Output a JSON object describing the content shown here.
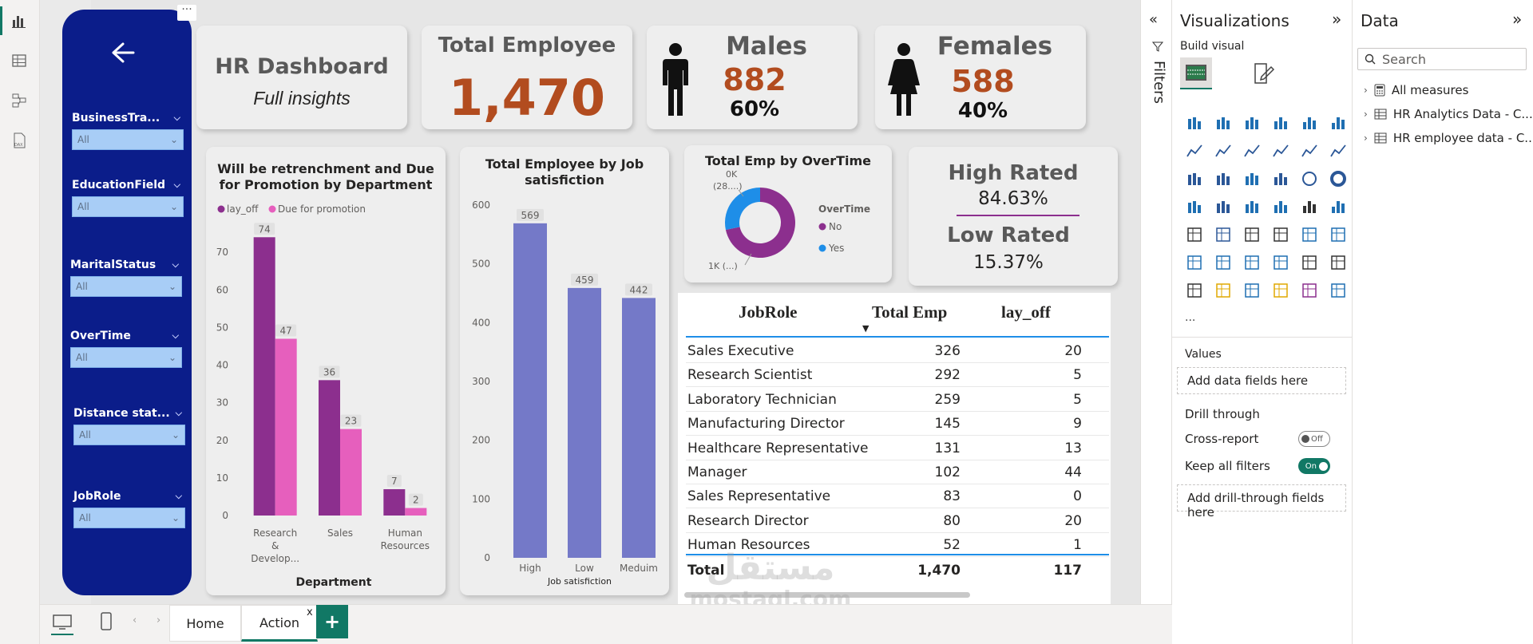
{
  "left_rail": {
    "icons": [
      "report-view-icon",
      "table-view-icon",
      "model-view-icon",
      "dax-query-icon"
    ]
  },
  "slicers": [
    {
      "label": "BusinessTra...",
      "value": "All"
    },
    {
      "label": "EducationField",
      "value": "All"
    },
    {
      "label": "MaritalStatus",
      "value": "All"
    },
    {
      "label": "OverTime",
      "value": "All"
    },
    {
      "label": "Distance stat...",
      "value": "All"
    },
    {
      "label": "JobRole",
      "value": "All"
    }
  ],
  "title_card": {
    "title": "HR Dashboard",
    "subtitle": "Full insights"
  },
  "total_card": {
    "title": "Total Employee",
    "value": "1,470"
  },
  "males_card": {
    "title": "Males",
    "value": "882",
    "pct": "60%"
  },
  "females_card": {
    "title": "Females",
    "value": "588",
    "pct": "40%"
  },
  "rating_card": {
    "high_label": "High Rated",
    "high_value": "84.63%",
    "low_label": "Low Rated",
    "low_value": "15.37%"
  },
  "chart_data": [
    {
      "type": "bar",
      "title": "Will be retrenchment and Due for Promotion by Department",
      "xlabel": "Department",
      "ylabel": "",
      "categories": [
        "Research & Develop...",
        "Sales",
        "Human Resources"
      ],
      "series": [
        {
          "name": "lay_off",
          "values": [
            74,
            36,
            7
          ],
          "color": "#8c2f8e"
        },
        {
          "name": "Due for promotion",
          "values": [
            47,
            23,
            2
          ],
          "color": "#e65fbd"
        }
      ],
      "ylim": [
        0,
        80
      ],
      "yticks": [
        0,
        10,
        20,
        30,
        40,
        50,
        60,
        70
      ],
      "legend": "top-left",
      "grid": false
    },
    {
      "type": "bar",
      "title": "Total Employee by Job satisfiction",
      "xlabel": "Job satisfiction",
      "ylabel": "",
      "categories": [
        "High",
        "Low",
        "Meduim"
      ],
      "values": [
        569,
        459,
        442
      ],
      "color": "#7479c8",
      "ylim": [
        0,
        600
      ],
      "yticks": [
        0,
        100,
        200,
        300,
        400,
        500,
        600
      ],
      "grid": false
    },
    {
      "type": "pie",
      "title": "Total Emp by OverTime",
      "legend_title": "OverTime",
      "categories": [
        "No",
        "Yes"
      ],
      "values": [
        1054,
        416
      ],
      "colors": [
        "#8c2f8e",
        "#1e8ee8"
      ],
      "slice_labels": [
        "1K (...)",
        "0K (28....)"
      ],
      "legend": "right"
    },
    {
      "type": "table",
      "columns": [
        "JobRole",
        "Total Emp",
        "lay_off"
      ],
      "rows": [
        [
          "Sales Executive",
          "326",
          "20"
        ],
        [
          "Research Scientist",
          "292",
          "5"
        ],
        [
          "Laboratory Technician",
          "259",
          "5"
        ],
        [
          "Manufacturing Director",
          "145",
          "9"
        ],
        [
          "Healthcare Representative",
          "131",
          "13"
        ],
        [
          "Manager",
          "102",
          "44"
        ],
        [
          "Sales Representative",
          "83",
          "0"
        ],
        [
          "Research Director",
          "80",
          "20"
        ],
        [
          "Human Resources",
          "52",
          "1"
        ]
      ],
      "total": [
        "Total",
        "1,470",
        "117"
      ]
    }
  ],
  "bottom_bar": {
    "tabs": [
      "Home",
      "Action"
    ],
    "active_tab": "Action",
    "close_glyph": "x",
    "add_glyph": "+"
  },
  "filters_pane": {
    "label": "Filters"
  },
  "viz_pane": {
    "title": "Visualizations",
    "build_label": "Build visual",
    "values_label": "Values",
    "values_placeholder": "Add data fields here",
    "drill_label": "Drill through",
    "cross_report_label": "Cross-report",
    "cross_report_state": "Off",
    "keep_filters_label": "Keep all filters",
    "keep_filters_state": "On",
    "drill_placeholder": "Add drill-through fields here",
    "more": "..."
  },
  "data_pane": {
    "title": "Data",
    "search_placeholder": "Search",
    "items": [
      "All measures",
      "HR Analytics Data - C...",
      "HR employee data - C..."
    ]
  },
  "watermark": {
    "arabic": "مستقل",
    "latin": "mostaql.com"
  }
}
